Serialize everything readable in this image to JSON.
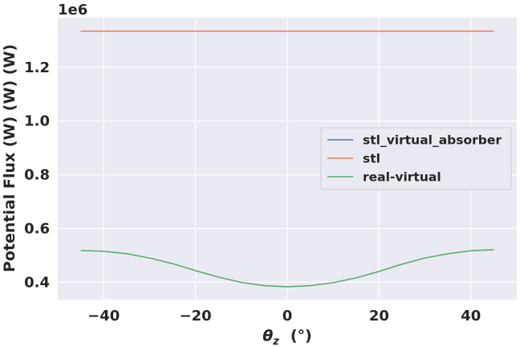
{
  "chart_data": {
    "type": "line",
    "xlabel_symbol": "θ",
    "xlabel_subscript": "z",
    "xlabel_unit": "(°)",
    "ylabel": "Potential Flux (W) (W) (W)",
    "y_offset_label": "1e6",
    "xlim": [
      -50,
      50
    ],
    "ylim": [
      335000,
      1385000
    ],
    "x_ticks": [
      -40,
      -20,
      0,
      20,
      40
    ],
    "x_tick_labels": [
      "−40",
      "−20",
      "0",
      "20",
      "40"
    ],
    "y_ticks": [
      400000,
      600000,
      800000,
      1000000,
      1200000
    ],
    "y_tick_labels": [
      "0.4",
      "0.6",
      "0.8",
      "1.0",
      "1.2"
    ],
    "grid": true,
    "legend_position": "center-right",
    "x": [
      -45,
      -40,
      -35,
      -30,
      -25,
      -20,
      -15,
      -10,
      -5,
      0,
      5,
      10,
      15,
      20,
      25,
      30,
      35,
      40,
      45
    ],
    "series": [
      {
        "name": "stl_virtual_absorber",
        "color": "#4c72b0",
        "values": [
          1335000,
          1335000,
          1335000,
          1335000,
          1335000,
          1335000,
          1335000,
          1335000,
          1335000,
          1335000,
          1335000,
          1335000,
          1335000,
          1335000,
          1335000,
          1335000,
          1335000,
          1335000,
          1335000
        ]
      },
      {
        "name": "stl",
        "color": "#dd8452",
        "values": [
          1335000,
          1335000,
          1335000,
          1335000,
          1335000,
          1335000,
          1335000,
          1335000,
          1335000,
          1335000,
          1335000,
          1335000,
          1335000,
          1335000,
          1335000,
          1335000,
          1335000,
          1335000,
          1335000
        ]
      },
      {
        "name": "real-virtual",
        "color": "#55a868",
        "values": [
          518000,
          515000,
          506000,
          490000,
          469000,
          443000,
          419000,
          399000,
          387000,
          383000,
          387000,
          398000,
          416000,
          440000,
          467000,
          490000,
          506000,
          517000,
          521000
        ]
      }
    ]
  }
}
